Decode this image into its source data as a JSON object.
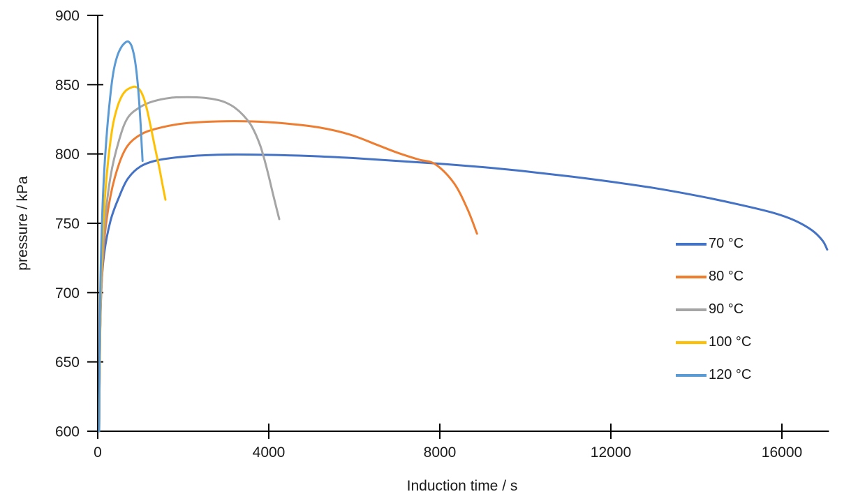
{
  "chart_data": {
    "type": "line",
    "title": "",
    "xlabel": "Induction time / s",
    "ylabel": "pressure / kPa",
    "xlim": [
      0,
      17100
    ],
    "ylim": [
      600,
      900
    ],
    "x_ticks": [
      0,
      4000,
      8000,
      12000,
      16000
    ],
    "y_ticks": [
      600,
      650,
      700,
      750,
      800,
      850,
      900
    ],
    "grid": false,
    "tick_style": "cross",
    "legend_position": "inside-right-middle",
    "background": "#ffffff",
    "axis_color": "#000000",
    "text_color": "#1a1a1a",
    "series": [
      {
        "name": "70 °C",
        "color": "#4472C4",
        "points": [
          [
            33,
            600
          ],
          [
            50,
            660
          ],
          [
            80,
            700
          ],
          [
            150,
            728
          ],
          [
            300,
            752
          ],
          [
            500,
            769
          ],
          [
            700,
            782
          ],
          [
            1000,
            791
          ],
          [
            1400,
            795.5
          ],
          [
            2000,
            798
          ],
          [
            2800,
            799.5
          ],
          [
            3800,
            799.5
          ],
          [
            5000,
            798.5
          ],
          [
            6000,
            797
          ],
          [
            7000,
            795
          ],
          [
            8000,
            793
          ],
          [
            9000,
            790.5
          ],
          [
            10000,
            787.5
          ],
          [
            11000,
            784
          ],
          [
            12000,
            780
          ],
          [
            13000,
            775.5
          ],
          [
            14000,
            770
          ],
          [
            15000,
            763.5
          ],
          [
            15800,
            757.5
          ],
          [
            16300,
            752
          ],
          [
            16700,
            745
          ],
          [
            16950,
            737.5
          ],
          [
            17060,
            731
          ]
        ]
      },
      {
        "name": "80 °C",
        "color": "#ED7D31",
        "points": [
          [
            33,
            600
          ],
          [
            55,
            668
          ],
          [
            90,
            706
          ],
          [
            160,
            740
          ],
          [
            300,
            770
          ],
          [
            500,
            793
          ],
          [
            700,
            806
          ],
          [
            1000,
            814
          ],
          [
            1400,
            818.5
          ],
          [
            2000,
            822
          ],
          [
            2800,
            823.5
          ],
          [
            3600,
            823.5
          ],
          [
            4400,
            822
          ],
          [
            5200,
            819
          ],
          [
            5900,
            814
          ],
          [
            6500,
            807
          ],
          [
            7000,
            801
          ],
          [
            7500,
            796
          ],
          [
            7900,
            792.5
          ],
          [
            8330,
            779
          ],
          [
            8650,
            760
          ],
          [
            8870,
            742.5
          ]
        ]
      },
      {
        "name": "90 °C",
        "color": "#A5A5A5",
        "points": [
          [
            33,
            600
          ],
          [
            55,
            672
          ],
          [
            90,
            712
          ],
          [
            160,
            748
          ],
          [
            300,
            784
          ],
          [
            500,
            810
          ],
          [
            700,
            826
          ],
          [
            1000,
            834
          ],
          [
            1300,
            838
          ],
          [
            1700,
            840.5
          ],
          [
            2100,
            841
          ],
          [
            2500,
            840.5
          ],
          [
            2800,
            839
          ],
          [
            3000,
            837
          ],
          [
            3200,
            833.5
          ],
          [
            3400,
            828
          ],
          [
            3600,
            820
          ],
          [
            3800,
            806
          ],
          [
            3950,
            790
          ],
          [
            4100,
            771
          ],
          [
            4245,
            753
          ]
        ]
      },
      {
        "name": "100 °C",
        "color": "#FFC000",
        "points": [
          [
            33,
            600
          ],
          [
            60,
            690
          ],
          [
            100,
            730
          ],
          [
            160,
            765
          ],
          [
            250,
            797
          ],
          [
            350,
            820
          ],
          [
            450,
            833
          ],
          [
            550,
            841
          ],
          [
            650,
            845.5
          ],
          [
            750,
            847.5
          ],
          [
            850,
            848.5
          ],
          [
            920,
            848
          ],
          [
            1000,
            845.5
          ],
          [
            1080,
            840
          ],
          [
            1160,
            831
          ],
          [
            1250,
            818
          ],
          [
            1350,
            803
          ],
          [
            1440,
            790
          ],
          [
            1520,
            777
          ],
          [
            1584,
            767
          ]
        ]
      },
      {
        "name": "120 °C",
        "color": "#5B9BD5",
        "points": [
          [
            33,
            600
          ],
          [
            50,
            680
          ],
          [
            80,
            730
          ],
          [
            130,
            775
          ],
          [
            200,
            810
          ],
          [
            280,
            838
          ],
          [
            360,
            858
          ],
          [
            450,
            870
          ],
          [
            550,
            877
          ],
          [
            650,
            880.5
          ],
          [
            720,
            881
          ],
          [
            790,
            878
          ],
          [
            850,
            871
          ],
          [
            900,
            861
          ],
          [
            940,
            849
          ],
          [
            975,
            835
          ],
          [
            1005,
            820
          ],
          [
            1025,
            808
          ],
          [
            1040,
            800
          ],
          [
            1048,
            795
          ]
        ]
      }
    ]
  }
}
